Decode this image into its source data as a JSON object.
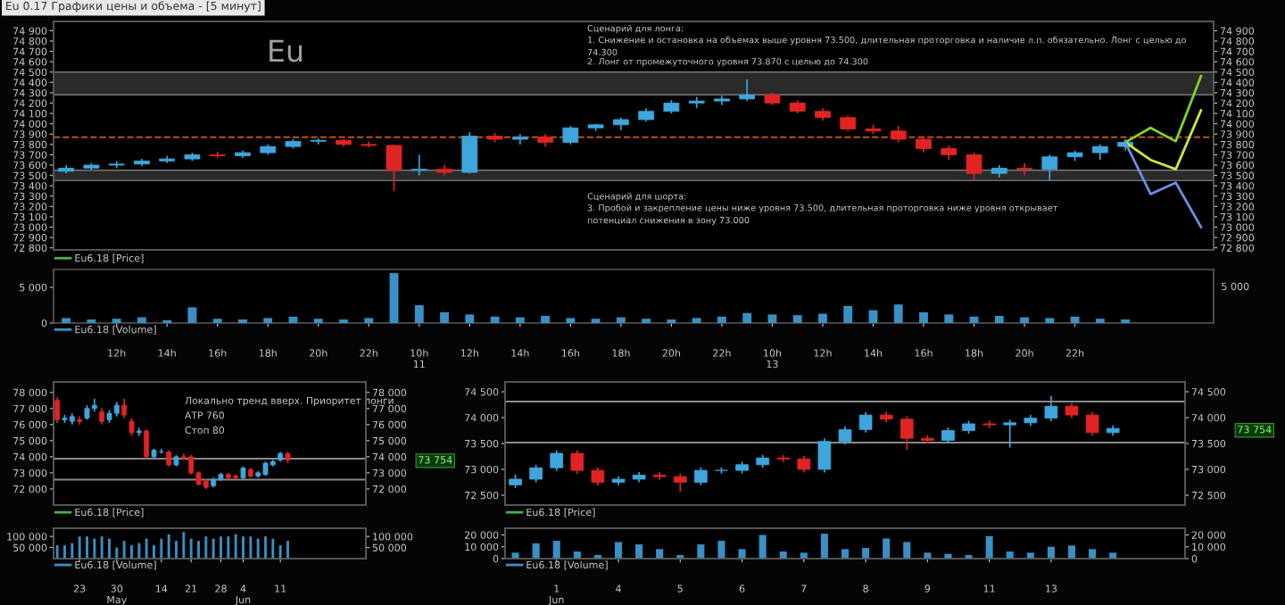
{
  "chart_data": [
    {
      "type": "candlestick",
      "title": "Eu",
      "tick_labels": "y",
      "legend": "bottom left",
      "categories": [
        null,
        null,
        null,
        null,
        null,
        null,
        null,
        null,
        null,
        null,
        null,
        null,
        null,
        null,
        null,
        null,
        null,
        null,
        null,
        null,
        null,
        null,
        null,
        null,
        null,
        null,
        null,
        null,
        null,
        null,
        null,
        null,
        null,
        null,
        null,
        null,
        null,
        null,
        null,
        null,
        null,
        null,
        null,
        null,
        null,
        null
      ],
      "series": [
        {
          "type": "candlestick",
          "name": "Eu6.18 [Price]",
          "color": "#4caf50",
          "ohlc": [
            [
              73540,
              73600,
              73520,
              73570
            ],
            [
              73570,
              73620,
              73550,
              73600
            ],
            [
              73600,
              73640,
              73570,
              73610
            ],
            [
              73610,
              73660,
              73590,
              73640
            ],
            [
              73640,
              73690,
              73620,
              73660
            ],
            [
              73660,
              73720,
              73640,
              73700
            ],
            [
              73700,
              73730,
              73670,
              73690
            ],
            [
              73690,
              73740,
              73670,
              73720
            ],
            [
              73720,
              73800,
              73700,
              73780
            ],
            [
              73780,
              73850,
              73760,
              73830
            ],
            [
              73830,
              73860,
              73800,
              73840
            ],
            [
              73840,
              73850,
              73780,
              73800
            ],
            [
              73800,
              73830,
              73770,
              73790
            ],
            [
              73790,
              73800,
              73350,
              73550
            ],
            [
              73550,
              73700,
              73500,
              73560
            ],
            [
              73560,
              73600,
              73500,
              73530
            ],
            [
              73530,
              73920,
              73520,
              73880
            ],
            [
              73880,
              73910,
              73820,
              73850
            ],
            [
              73850,
              73900,
              73800,
              73870
            ],
            [
              73870,
              73900,
              73780,
              73820
            ],
            [
              73820,
              73980,
              73800,
              73960
            ],
            [
              73960,
              74000,
              73930,
              73990
            ],
            [
              73990,
              74060,
              73940,
              74040
            ],
            [
              74040,
              74150,
              74020,
              74120
            ],
            [
              74120,
              74230,
              74100,
              74200
            ],
            [
              74200,
              74260,
              74150,
              74220
            ],
            [
              74220,
              74270,
              74180,
              74240
            ],
            [
              74240,
              74430,
              74220,
              74280
            ],
            [
              74280,
              74300,
              74180,
              74200
            ],
            [
              74200,
              74230,
              74100,
              74120
            ],
            [
              74120,
              74150,
              74030,
              74060
            ],
            [
              74060,
              74080,
              73930,
              73950
            ],
            [
              73950,
              73990,
              73900,
              73930
            ],
            [
              73930,
              73980,
              73820,
              73850
            ],
            [
              73850,
              73880,
              73720,
              73760
            ],
            [
              73760,
              73790,
              73650,
              73700
            ],
            [
              73700,
              73720,
              73460,
              73520
            ],
            [
              73520,
              73600,
              73480,
              73570
            ],
            [
              73570,
              73620,
              73500,
              73560
            ],
            [
              73560,
              73700,
              73450,
              73680
            ],
            [
              73680,
              73740,
              73640,
              73720
            ],
            [
              73720,
              73800,
              73650,
              73780
            ],
            [
              73780,
              73850,
              73740,
              73820
            ],
            null,
            null,
            null
          ],
          "colors": [
            "#3ea6dc",
            "#3ea6dc",
            "#3ea6dc",
            "#3ea6dc",
            "#3ea6dc",
            "#3ea6dc",
            "#e02424",
            "#3ea6dc",
            "#3ea6dc",
            "#3ea6dc",
            "#3ea6dc",
            "#e02424",
            "#e02424",
            "#e02424",
            "#3ea6dc",
            "#e02424",
            "#3ea6dc",
            "#e02424",
            "#3ea6dc",
            "#e02424",
            "#3ea6dc",
            "#3ea6dc",
            "#3ea6dc",
            "#3ea6dc",
            "#3ea6dc",
            "#3ea6dc",
            "#3ea6dc",
            "#3ea6dc",
            "#e02424",
            "#e02424",
            "#e02424",
            "#e02424",
            "#e02424",
            "#e02424",
            "#e02424",
            "#e02424",
            "#e02424",
            "#3ea6dc",
            "#e02424",
            "#3ea6dc",
            "#3ea6dc",
            "#3ea6dc",
            "#3ea6dc",
            null,
            null,
            null
          ]
        },
        {
          "type": "line",
          "color": "#7fd32a",
          "values": [
            null,
            null,
            null,
            null,
            null,
            null,
            null,
            null,
            null,
            null,
            null,
            null,
            null,
            null,
            null,
            null,
            null,
            null,
            null,
            null,
            null,
            null,
            null,
            null,
            null,
            null,
            null,
            null,
            null,
            null,
            null,
            null,
            null,
            null,
            null,
            null,
            null,
            null,
            null,
            null,
            null,
            null,
            73820,
            73960,
            73830,
            74460
          ]
        },
        {
          "type": "line",
          "color": "#c5e83a",
          "values": [
            null,
            null,
            null,
            null,
            null,
            null,
            null,
            null,
            null,
            null,
            null,
            null,
            null,
            null,
            null,
            null,
            null,
            null,
            null,
            null,
            null,
            null,
            null,
            null,
            null,
            null,
            null,
            null,
            null,
            null,
            null,
            null,
            null,
            null,
            null,
            null,
            null,
            null,
            null,
            null,
            null,
            null,
            73820,
            73650,
            73560,
            74130
          ]
        },
        {
          "type": "line",
          "color": "#6a8fe0",
          "values": [
            null,
            null,
            null,
            null,
            null,
            null,
            null,
            null,
            null,
            null,
            null,
            null,
            null,
            null,
            null,
            null,
            null,
            null,
            null,
            null,
            null,
            null,
            null,
            null,
            null,
            null,
            null,
            null,
            null,
            null,
            null,
            null,
            null,
            null,
            null,
            null,
            null,
            null,
            null,
            null,
            null,
            null,
            73820,
            73320,
            73430,
            73000
          ]
        }
      ],
      "ylim": [
        72780,
        74990
      ],
      "yticks": [
        {
          "value": 72800,
          "label": "72 800"
        },
        {
          "value": 72900,
          "label": "72 900"
        },
        {
          "value": 73000,
          "label": "73 000"
        },
        {
          "value": 73100,
          "label": "73 100"
        },
        {
          "value": 73200,
          "label": "73 200"
        },
        {
          "value": 73300,
          "label": "73 300"
        },
        {
          "value": 73400,
          "label": "73 400"
        },
        {
          "value": 73500,
          "label": "73 500"
        },
        {
          "value": 73600,
          "label": "73 600"
        },
        {
          "value": 73700,
          "label": "73 700"
        },
        {
          "value": 73800,
          "label": "73 800"
        },
        {
          "value": 73900,
          "label": "73 900"
        },
        {
          "value": 74000,
          "label": "74 000"
        },
        {
          "value": 74100,
          "label": "74 100"
        },
        {
          "value": 74200,
          "label": "74 200"
        },
        {
          "value": 74300,
          "label": "74 300"
        },
        {
          "value": 74400,
          "label": "74 400"
        },
        {
          "value": 74500,
          "label": "74 500"
        },
        {
          "value": 74600,
          "label": "74 600"
        },
        {
          "value": 74700,
          "label": "74 700"
        },
        {
          "value": 74800,
          "label": "74 800"
        },
        {
          "value": 74900,
          "label": "74 900"
        }
      ],
      "y2lim": [
        72780,
        74990
      ],
      "y2ticks": [
        {
          "value": 72800,
          "label": "72 800"
        },
        {
          "value": 72900,
          "label": "72 900"
        },
        {
          "value": 73000,
          "label": "73 000"
        },
        {
          "value": 73100,
          "label": "73 100"
        },
        {
          "value": 73200,
          "label": "73 200"
        },
        {
          "value": 73300,
          "label": "73 300"
        },
        {
          "value": 73400,
          "label": "73 400"
        },
        {
          "value": 73500,
          "label": "73 500"
        },
        {
          "value": 73600,
          "label": "73 600"
        },
        {
          "value": 73700,
          "label": "73 700"
        },
        {
          "value": 73800,
          "label": "73 800"
        },
        {
          "value": 73900,
          "label": "73 900"
        },
        {
          "value": 74000,
          "label": "74 000"
        },
        {
          "value": 74100,
          "label": "74 100"
        },
        {
          "value": 74200,
          "label": "74 200"
        },
        {
          "value": 74300,
          "label": "74 300"
        },
        {
          "value": 74400,
          "label": "74 400"
        },
        {
          "value": 74500,
          "label": "74 500"
        },
        {
          "value": 74600,
          "label": "74 600"
        },
        {
          "value": 74700,
          "label": "74 700"
        },
        {
          "value": 74800,
          "label": "74 800"
        },
        {
          "value": 74900,
          "label": "74 900"
        }
      ],
      "bands": [
        {
          "axis": "y",
          "from": 74280,
          "to": 74500,
          "color": "#2a2a2a"
        },
        {
          "axis": "y",
          "from": 73450,
          "to": 73550,
          "color": "#2a2a2a"
        }
      ],
      "ref_lines": [
        {
          "axis": "y",
          "value": 73870,
          "color": "#c0501a",
          "line_style": "dashed"
        }
      ],
      "annotations": [
        "Eu 0.17 Графики цены и объема - [5 минут]",
        "Сценарий для лонга:",
        "1. Снижение и остановка на объемах выше уровня 73.500, длительная проторговка и наличие л.п. обязательно. Лонг с целью до\n74.300",
        "2. Лонг от промежуточного уровня 73.870 с целью до 74.300",
        "Сценарий для шорта:",
        "3. Пробой и закрепление цены ниже уровня 73.500, длительная проторговка ниже уровня открывает\nпотенциал снижения в зону 73.000"
      ]
    },
    {
      "type": "bar",
      "legend": "bottom left",
      "categories": [
        null,
        null,
        "12h",
        null,
        "14h",
        null,
        "16h",
        null,
        "18h",
        null,
        "20h",
        null,
        "22h",
        null,
        "10h\n11",
        null,
        "12h",
        null,
        "14h",
        null,
        "16h",
        null,
        "18h",
        null,
        "20h",
        null,
        "22h",
        null,
        "10h\n13",
        null,
        "12h",
        null,
        "14h",
        null,
        "16h",
        null,
        "18h",
        null,
        "20h",
        null,
        "22h",
        null,
        null,
        null,
        null,
        null
      ],
      "series": [
        {
          "name": "Eu6.18 [Volume]",
          "color": "#3a8fc4",
          "values": [
            700,
            500,
            600,
            800,
            400,
            2200,
            600,
            500,
            700,
            900,
            600,
            500,
            700,
            7000,
            2500,
            1500,
            1200,
            900,
            800,
            1000,
            700,
            600,
            800,
            600,
            500,
            700,
            900,
            1400,
            1200,
            1100,
            1300,
            2400,
            1800,
            2600,
            1500,
            1200,
            900,
            1000,
            800,
            700,
            900,
            600,
            500,
            null,
            null,
            null
          ]
        }
      ],
      "ylim": [
        0,
        7500
      ],
      "yticks": [
        0,
        {
          "value": 5000,
          "label": "5 000"
        }
      ],
      "annotations": [
        "5 000"
      ]
    },
    {
      "type": "candlestick",
      "tick_labels": "y",
      "legend": "bottom left",
      "categories": [
        null,
        null,
        null,
        null,
        null,
        null,
        null,
        null,
        null,
        null,
        null,
        null,
        null,
        null,
        null,
        null,
        null,
        null,
        null,
        null,
        null,
        null,
        null,
        null,
        null,
        null,
        null,
        null,
        null,
        null,
        null,
        null,
        null,
        null,
        null,
        null,
        null,
        null,
        null,
        null,
        null,
        null
      ],
      "series": [
        {
          "type": "candlestick",
          "name": "Eu6.18 [Price]",
          "color": "#4caf50",
          "ohlc": [
            [
              77500,
              77700,
              76100,
              76300
            ],
            [
              76300,
              76600,
              76100,
              76400
            ],
            [
              76200,
              76700,
              76000,
              76500
            ],
            [
              76300,
              76500,
              76000,
              76200
            ],
            [
              76400,
              77200,
              76300,
              77000
            ],
            [
              77000,
              77600,
              76800,
              77200
            ],
            [
              76800,
              77000,
              76000,
              76200
            ],
            [
              76300,
              76900,
              76100,
              76700
            ],
            [
              76700,
              77400,
              76500,
              77200
            ],
            [
              77200,
              77600,
              76400,
              76600
            ],
            [
              76200,
              76400,
              75300,
              75500
            ],
            [
              75500,
              75800,
              75300,
              75600
            ],
            [
              75600,
              75700,
              73900,
              74000
            ],
            [
              74000,
              74500,
              73900,
              74400
            ],
            [
              74300,
              74500,
              74200,
              74300
            ],
            [
              74300,
              74400,
              73400,
              73500
            ],
            [
              73500,
              74100,
              73400,
              74000
            ],
            [
              74000,
              74200,
              73800,
              73900
            ],
            [
              74000,
              74100,
              72900,
              73000
            ],
            [
              73000,
              73100,
              72200,
              72300
            ],
            [
              72500,
              72600,
              72000,
              72100
            ],
            [
              72200,
              72700,
              72100,
              72600
            ],
            [
              72600,
              73000,
              72500,
              72900
            ],
            [
              72900,
              73000,
              72600,
              72700
            ],
            [
              72800,
              72900,
              72600,
              72700
            ],
            [
              72700,
              73400,
              72600,
              73300
            ],
            [
              73200,
              73300,
              72700,
              72800
            ],
            [
              72800,
              73100,
              72700,
              73000
            ],
            [
              72900,
              73700,
              72800,
              73600
            ],
            [
              73500,
              73800,
              73400,
              73700
            ],
            [
              73800,
              74300,
              73700,
              74200
            ],
            [
              74200,
              74300,
              73600,
              73800
            ],
            null,
            null,
            null,
            null,
            null,
            null,
            null,
            null,
            null,
            null
          ],
          "colors": [
            "#e02424",
            "#3ea6dc",
            "#3ea6dc",
            "#e02424",
            "#3ea6dc",
            "#3ea6dc",
            "#e02424",
            "#3ea6dc",
            "#3ea6dc",
            "#e02424",
            "#e02424",
            "#3ea6dc",
            "#e02424",
            "#3ea6dc",
            "#3ea6dc",
            "#e02424",
            "#3ea6dc",
            "#e02424",
            "#e02424",
            "#e02424",
            "#e02424",
            "#3ea6dc",
            "#3ea6dc",
            "#e02424",
            "#e02424",
            "#3ea6dc",
            "#e02424",
            "#3ea6dc",
            "#3ea6dc",
            "#3ea6dc",
            "#3ea6dc",
            "#e02424",
            null,
            null,
            null,
            null,
            null,
            null,
            null,
            null,
            null,
            null
          ]
        }
      ],
      "ylim": [
        71000,
        78650
      ],
      "yticks": [
        {
          "value": 72000,
          "label": "72 000"
        },
        {
          "value": 73000,
          "label": "73 000"
        },
        {
          "value": 74000,
          "label": "74 000"
        },
        {
          "value": 75000,
          "label": "75 000"
        },
        {
          "value": 76000,
          "label": "76 000"
        },
        {
          "value": 77000,
          "label": "77 000"
        },
        {
          "value": 78000,
          "label": "78 000"
        }
      ],
      "y2lim": [
        71000,
        78650
      ],
      "y2ticks": [
        {
          "value": 72000,
          "label": "72 000"
        },
        {
          "value": 73000,
          "label": "73 000"
        },
        {
          "value": 74000,
          "label": "74 000"
        },
        {
          "value": 75000,
          "label": "75 000"
        },
        {
          "value": 76000,
          "label": "76 000"
        },
        {
          "value": 77000,
          "label": "77 000"
        },
        {
          "value": 78000,
          "label": "78 000"
        }
      ],
      "ref_lines": [
        {
          "axis": "y",
          "value": 73880,
          "color": "#8a8a8a",
          "line_style": "solid"
        },
        {
          "axis": "y",
          "value": 72580,
          "color": "#8a8a8a",
          "line_style": "solid"
        }
      ],
      "annotations": [
        "Локально тренд вверх. Приоритет лонги",
        "АТР 760",
        "Стоп 80",
        "73 754"
      ]
    },
    {
      "type": "bar",
      "legend": "bottom left",
      "categories": [
        null,
        null,
        null,
        "23",
        null,
        null,
        null,
        null,
        "30\nMay",
        null,
        null,
        null,
        null,
        null,
        "14",
        null,
        null,
        null,
        "21",
        null,
        null,
        null,
        "28",
        null,
        null,
        "4\nJun",
        null,
        null,
        null,
        null,
        "11",
        null,
        null,
        null,
        null,
        null,
        null,
        null,
        null,
        null,
        null,
        null
      ],
      "series": [
        {
          "name": "Eu6.18 [Volume]",
          "color": "#3a8fc4",
          "values": [
            60000,
            60000,
            70000,
            100000,
            100000,
            90000,
            100000,
            90000,
            50000,
            80000,
            60000,
            70000,
            90000,
            60000,
            90000,
            110000,
            80000,
            120000,
            90000,
            80000,
            100000,
            90000,
            100000,
            100000,
            110000,
            100000,
            100000,
            90000,
            100000,
            90000,
            60000,
            80000,
            null,
            null,
            null,
            null,
            null,
            null,
            null,
            null,
            null,
            null
          ]
        }
      ],
      "ylim": [
        0,
        137000
      ],
      "yticks": [
        {
          "value": 50000,
          "label": "50 000"
        },
        {
          "value": 100000,
          "label": "100 000"
        }
      ],
      "y2lim": [
        0,
        137000
      ],
      "y2ticks": [
        {
          "value": 50000,
          "label": "50 000"
        },
        {
          "value": 100000,
          "label": "100 000"
        }
      ]
    },
    {
      "type": "candlestick",
      "tick_labels": "y",
      "legend": "bottom left",
      "categories": [
        null,
        null,
        null,
        null,
        null,
        null,
        null,
        null,
        null,
        null,
        null,
        null,
        null,
        null,
        null,
        null,
        null,
        null,
        null,
        null,
        null,
        null,
        null,
        null,
        null,
        null,
        null,
        null,
        null,
        null,
        null,
        null,
        null
      ],
      "series": [
        {
          "type": "candlestick",
          "name": "Eu6.18 [Price]",
          "color": "#4caf50",
          "ohlc": [
            [
              72700,
              72900,
              72640,
              72810
            ],
            [
              72810,
              73090,
              72750,
              73030
            ],
            [
              73030,
              73370,
              72970,
              73310
            ],
            [
              73310,
              73370,
              72910,
              72980
            ],
            [
              72980,
              73040,
              72690,
              72750
            ],
            [
              72750,
              72870,
              72690,
              72810
            ],
            [
              72810,
              72950,
              72750,
              72890
            ],
            [
              72890,
              72950,
              72800,
              72860
            ],
            [
              72860,
              72920,
              72570,
              72750
            ],
            [
              72750,
              73040,
              72690,
              72980
            ],
            [
              72980,
              73040,
              72920,
              72980
            ],
            [
              72980,
              73150,
              72920,
              73090
            ],
            [
              73090,
              73280,
              73030,
              73220
            ],
            [
              73220,
              73280,
              73140,
              73200
            ],
            [
              73200,
              73260,
              72940,
              73000
            ],
            [
              73000,
              73600,
              72940,
              73540
            ],
            [
              73540,
              73830,
              73480,
              73770
            ],
            [
              73770,
              74110,
              73710,
              74050
            ],
            [
              74050,
              74110,
              73910,
              73970
            ],
            [
              73970,
              74030,
              73380,
              73600
            ],
            [
              73600,
              73660,
              73500,
              73560
            ],
            [
              73560,
              73810,
              73500,
              73750
            ],
            [
              73750,
              73940,
              73690,
              73880
            ],
            [
              73880,
              73940,
              73800,
              73860
            ],
            [
              73860,
              73960,
              73420,
              73900
            ],
            [
              73900,
              74050,
              73840,
              73990
            ],
            [
              73990,
              74420,
              73930,
              74220
            ],
            [
              74220,
              74280,
              73990,
              74050
            ],
            [
              74050,
              74110,
              73650,
              73710
            ],
            [
              73710,
              73850,
              73650,
              73790
            ],
            null,
            null,
            null
          ],
          "colors": [
            "#3ea6dc",
            "#3ea6dc",
            "#3ea6dc",
            "#e02424",
            "#e02424",
            "#3ea6dc",
            "#3ea6dc",
            "#e02424",
            "#e02424",
            "#3ea6dc",
            "#3ea6dc",
            "#3ea6dc",
            "#3ea6dc",
            "#e02424",
            "#e02424",
            "#3ea6dc",
            "#3ea6dc",
            "#3ea6dc",
            "#e02424",
            "#e02424",
            "#e02424",
            "#3ea6dc",
            "#3ea6dc",
            "#e02424",
            "#3ea6dc",
            "#3ea6dc",
            "#3ea6dc",
            "#e02424",
            "#e02424",
            "#3ea6dc",
            null,
            null,
            null
          ]
        }
      ],
      "ylim": [
        72310,
        74690
      ],
      "yticks": [
        {
          "value": 72500,
          "label": "72 500"
        },
        {
          "value": 73000,
          "label": "73 000"
        },
        {
          "value": 73500,
          "label": "73 500"
        },
        {
          "value": 74000,
          "label": "74 000"
        },
        {
          "value": 74500,
          "label": "74 500"
        }
      ],
      "y2lim": [
        72310,
        74690
      ],
      "y2ticks": [
        {
          "value": 72500,
          "label": "72 500"
        },
        {
          "value": 73000,
          "label": "73 000"
        },
        {
          "value": 73500,
          "label": "73 500"
        },
        {
          "value": 74000,
          "label": "74 000"
        },
        {
          "value": 74500,
          "label": "74 500"
        }
      ],
      "ref_lines": [
        {
          "axis": "y",
          "value": 74310,
          "color": "#8a8a8a",
          "line_style": "solid"
        },
        {
          "axis": "y",
          "value": 73517,
          "color": "#8a8a8a",
          "line_style": "solid"
        }
      ],
      "annotations": [
        "73 754"
      ]
    },
    {
      "type": "bar",
      "legend": "bottom left",
      "categories": [
        null,
        null,
        "1\nJun",
        null,
        null,
        "4",
        null,
        null,
        "5",
        null,
        null,
        "6",
        null,
        null,
        "7",
        null,
        null,
        "8",
        null,
        null,
        "9",
        null,
        null,
        "11",
        null,
        null,
        "13",
        null,
        null,
        null,
        null,
        null,
        null
      ],
      "series": [
        {
          "name": "Eu6.18 [Volume]",
          "color": "#3a8fc4",
          "values": [
            5000,
            13000,
            15000,
            6000,
            3000,
            14000,
            12000,
            8000,
            3000,
            12000,
            15000,
            8000,
            20000,
            6000,
            5000,
            21000,
            8000,
            9000,
            17000,
            14000,
            5000,
            4000,
            3000,
            19000,
            6000,
            5000,
            10000,
            11000,
            8000,
            5000,
            null,
            null,
            null
          ]
        }
      ],
      "ylim": [
        0,
        25600
      ],
      "yticks": [
        0,
        {
          "value": 10000,
          "label": "10 000"
        },
        {
          "value": 20000,
          "label": "20 000"
        }
      ],
      "y2lim": [
        0,
        25600
      ],
      "y2ticks": [
        0,
        {
          "value": 10000,
          "label": "10 000"
        },
        {
          "value": 20000,
          "label": "20 000"
        }
      ]
    }
  ]
}
